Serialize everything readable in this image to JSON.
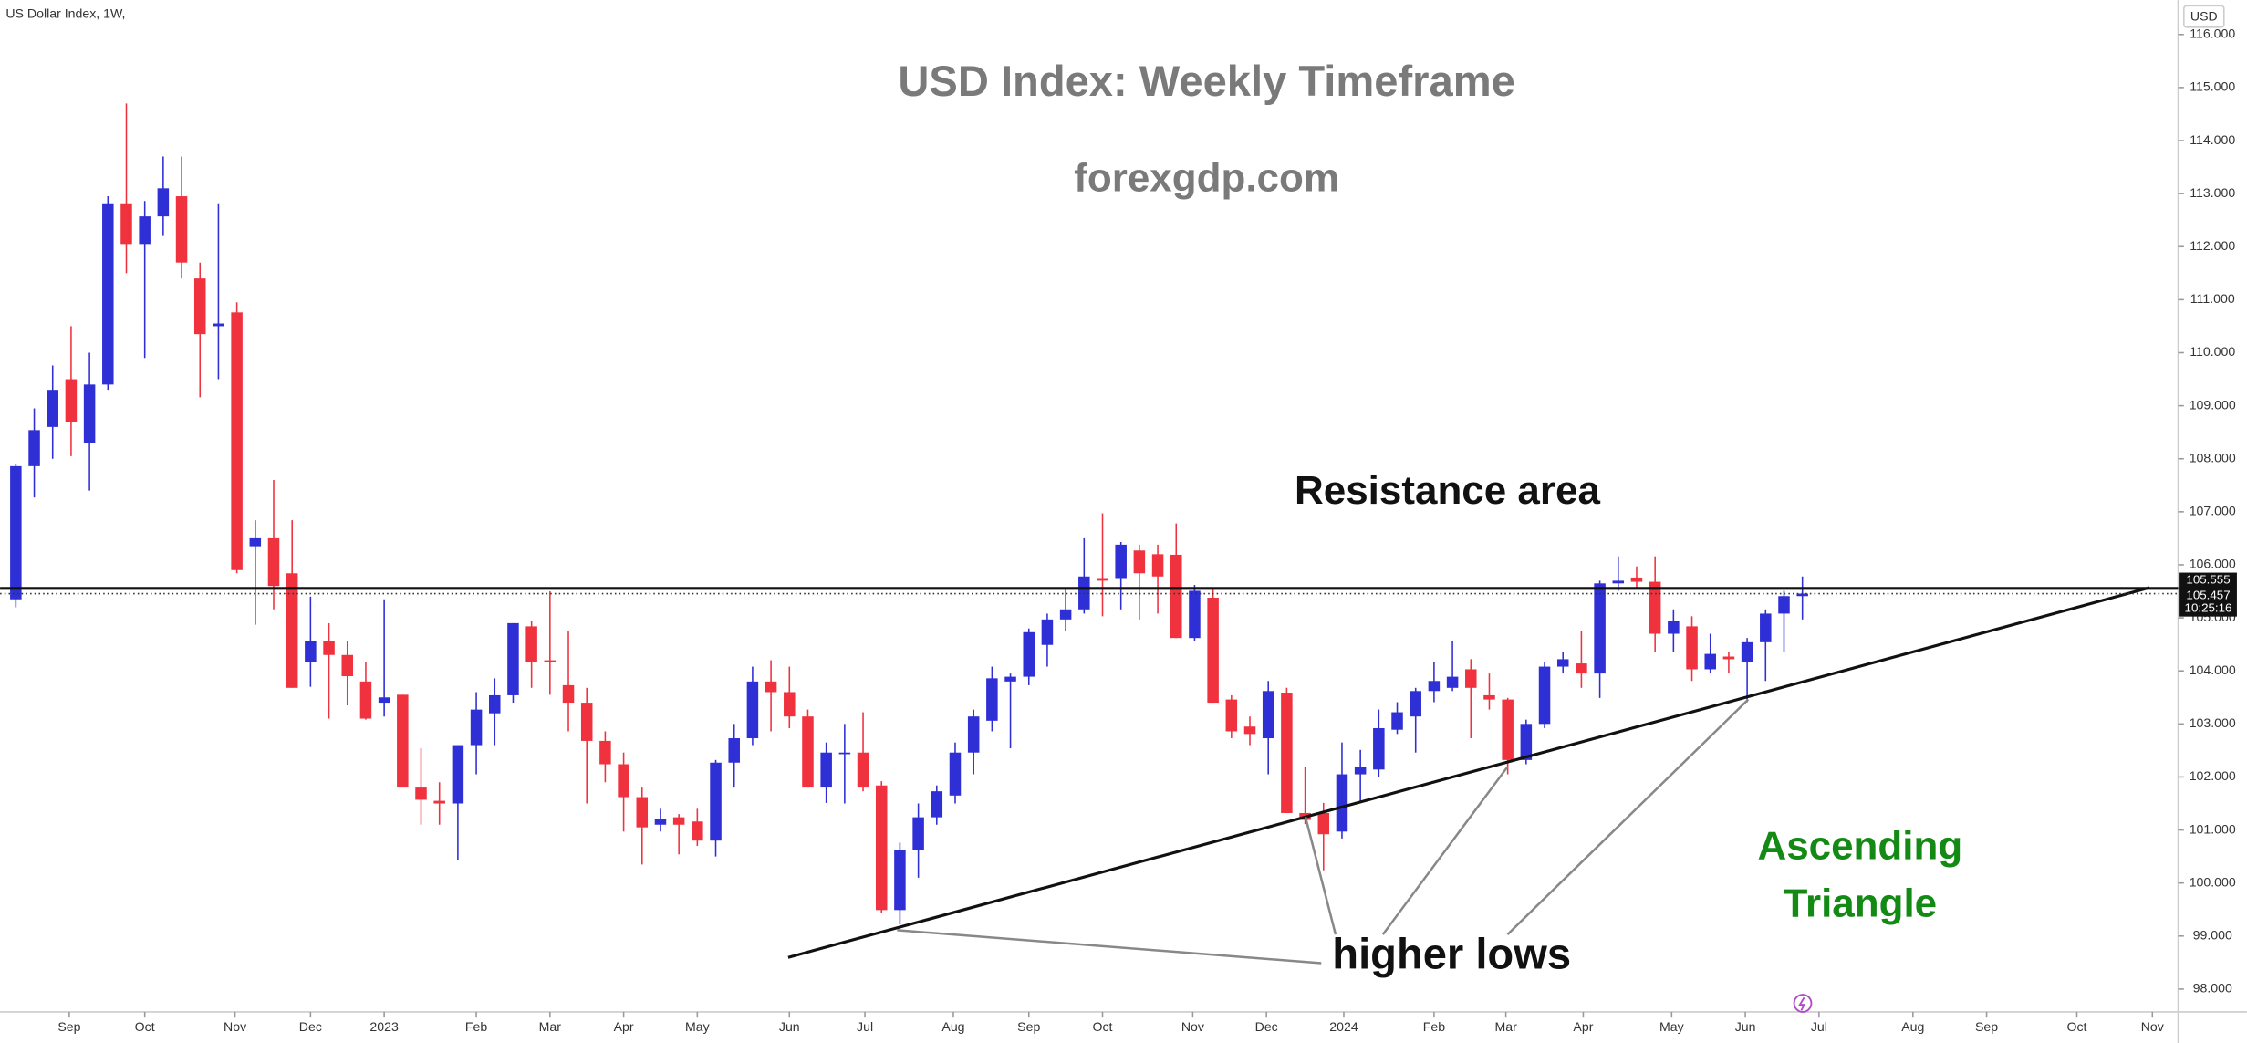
{
  "chart_data": {
    "type": "candlestick",
    "title": "USD Index: Weekly Timeframe",
    "subtitle": "forexgdp.com",
    "symbol_label": "US Dollar Index, 1W,",
    "currency": "USD",
    "annotations": {
      "resistance_area": "Resistance area",
      "higher_lows": "higher lows",
      "pattern": [
        "Ascending",
        "Triangle"
      ]
    },
    "resistance": 105.555,
    "last_price": 105.457,
    "countdown": "10:25:16",
    "up_color": "#2f2fd6",
    "down_color": "#f0323f",
    "x": [
      0,
      1,
      2,
      3,
      4,
      5,
      6,
      7,
      8,
      9,
      10,
      11,
      12,
      13,
      14,
      15,
      16,
      17,
      18,
      19,
      20,
      21,
      22,
      23,
      24,
      25,
      26,
      27,
      28,
      29,
      30,
      31,
      32,
      33,
      34,
      35,
      36,
      37,
      38,
      39,
      40,
      41,
      42,
      43,
      44,
      45,
      46,
      47,
      48,
      49,
      50,
      51,
      52,
      53,
      54,
      55,
      56,
      57,
      58,
      59,
      60,
      61,
      62,
      63,
      64,
      65,
      66,
      67,
      68,
      69,
      70,
      71,
      72,
      73,
      74,
      75,
      76,
      77,
      78,
      79,
      80,
      81,
      82,
      83,
      84,
      85,
      86,
      87,
      88,
      89,
      90,
      91,
      92,
      93,
      94,
      95,
      96,
      97
    ],
    "open": [
      105.35,
      107.86,
      108.6,
      109.5,
      108.3,
      109.4,
      112.8,
      112.05,
      112.57,
      112.95,
      111.4,
      110.5,
      110.76,
      106.35,
      106.5,
      105.84,
      104.16,
      104.57,
      104.3,
      103.8,
      103.4,
      103.55,
      101.8,
      101.55,
      101.5,
      102.6,
      103.2,
      103.54,
      104.84,
      104.2,
      103.73,
      103.4,
      102.68,
      102.24,
      101.62,
      101.1,
      101.24,
      101.16,
      100.8,
      102.27,
      102.73,
      103.8,
      103.6,
      103.14,
      101.8,
      102.43,
      102.46,
      101.84,
      99.49,
      100.62,
      101.24,
      101.65,
      102.46,
      103.06,
      103.8,
      103.89,
      104.49,
      104.97,
      105.16,
      105.75,
      105.75,
      106.27,
      106.2,
      106.19,
      104.62,
      105.38,
      103.46,
      102.95,
      102.73,
      103.59,
      101.32,
      101.32,
      100.97,
      102.05,
      102.14,
      102.89,
      103.14,
      103.62,
      103.68,
      104.03,
      103.54,
      103.46,
      102.32,
      103.0,
      104.08,
      104.14,
      103.95,
      105.65,
      105.76,
      105.68,
      104.7,
      104.84,
      104.03,
      104.27,
      104.16,
      104.54,
      105.08,
      105.41
    ],
    "high": [
      107.9,
      108.95,
      109.76,
      110.5,
      110.0,
      112.95,
      114.7,
      112.86,
      113.7,
      113.7,
      111.7,
      112.8,
      110.95,
      106.84,
      107.6,
      106.84,
      105.4,
      104.9,
      104.57,
      104.16,
      105.35,
      103.55,
      102.54,
      101.9,
      102.6,
      103.6,
      103.86,
      104.9,
      104.95,
      105.5,
      104.75,
      103.68,
      102.86,
      102.46,
      101.8,
      101.4,
      101.3,
      101.4,
      102.32,
      103.0,
      104.08,
      104.2,
      104.08,
      103.27,
      102.65,
      103.0,
      103.22,
      101.92,
      100.76,
      101.5,
      101.84,
      102.65,
      103.27,
      104.08,
      103.95,
      104.8,
      105.08,
      105.57,
      106.5,
      106.97,
      106.43,
      106.38,
      106.38,
      106.78,
      105.62,
      105.57,
      103.54,
      103.14,
      103.81,
      103.68,
      102.19,
      101.51,
      102.65,
      102.51,
      103.27,
      103.41,
      103.68,
      104.16,
      104.57,
      104.22,
      103.95,
      103.49,
      103.08,
      104.16,
      104.35,
      104.76,
      105.7,
      106.16,
      105.97,
      106.16,
      105.16,
      105.03,
      104.7,
      104.35,
      104.62,
      105.16,
      105.51,
      105.78
    ],
    "low": [
      105.2,
      107.27,
      108.0,
      108.05,
      107.4,
      109.3,
      111.5,
      109.9,
      112.2,
      111.4,
      109.16,
      109.5,
      105.84,
      104.87,
      105.16,
      103.68,
      103.7,
      103.1,
      103.35,
      103.08,
      103.14,
      101.8,
      101.1,
      101.1,
      100.43,
      102.05,
      102.6,
      103.4,
      103.68,
      103.55,
      102.86,
      101.5,
      101.9,
      100.97,
      100.35,
      100.97,
      100.54,
      100.7,
      100.5,
      101.8,
      102.6,
      102.86,
      102.92,
      101.8,
      101.51,
      101.5,
      101.73,
      99.43,
      99.22,
      100.1,
      101.1,
      101.5,
      102.05,
      102.86,
      102.54,
      103.73,
      104.08,
      104.76,
      105.08,
      105.03,
      105.16,
      104.97,
      105.08,
      104.62,
      104.57,
      103.4,
      102.73,
      102.6,
      102.05,
      101.32,
      101.11,
      100.24,
      100.84,
      101.51,
      102.0,
      102.81,
      102.46,
      103.41,
      103.62,
      102.73,
      103.27,
      102.05,
      102.24,
      102.92,
      103.95,
      103.68,
      103.49,
      105.51,
      105.57,
      104.35,
      104.35,
      103.81,
      103.95,
      103.95,
      103.41,
      103.81,
      104.35,
      104.97
    ],
    "close": [
      107.86,
      108.54,
      109.3,
      108.7,
      109.4,
      112.8,
      112.05,
      112.57,
      113.1,
      111.7,
      110.35,
      110.55,
      105.9,
      106.5,
      105.6,
      103.68,
      104.57,
      104.3,
      103.9,
      103.1,
      103.5,
      101.8,
      101.57,
      101.5,
      102.6,
      103.27,
      103.54,
      104.9,
      104.16,
      104.18,
      103.4,
      102.68,
      102.24,
      101.62,
      101.05,
      101.2,
      101.1,
      100.8,
      102.27,
      102.73,
      103.8,
      103.6,
      103.14,
      101.8,
      102.46,
      102.46,
      101.8,
      99.49,
      100.62,
      101.24,
      101.73,
      102.46,
      103.14,
      103.86,
      103.89,
      104.73,
      104.97,
      105.16,
      105.78,
      105.7,
      106.38,
      105.84,
      105.78,
      104.62,
      105.51,
      103.4,
      102.86,
      102.81,
      103.62,
      101.32,
      101.19,
      100.92,
      102.05,
      102.19,
      102.92,
      103.22,
      103.62,
      103.81,
      103.89,
      103.68,
      103.46,
      102.32,
      103.0,
      104.08,
      104.22,
      103.95,
      105.65,
      105.7,
      105.68,
      104.7,
      104.95,
      104.03,
      104.32,
      104.22,
      104.54,
      105.08,
      105.41,
      105.457
    ],
    "xlim": [
      -0.856,
      117.4
    ],
    "ylim": [
      97.57,
      116.65
    ],
    "xticks": [
      {
        "value": 2.9,
        "label": "Sep"
      },
      {
        "value": 7.0,
        "label": "Oct"
      },
      {
        "value": 11.9,
        "label": "Nov"
      },
      {
        "value": 16.0,
        "label": "Dec"
      },
      {
        "value": 20.0,
        "label": "2023"
      },
      {
        "value": 25.0,
        "label": "Feb"
      },
      {
        "value": 29.0,
        "label": "Mar"
      },
      {
        "value": 33.0,
        "label": "Apr"
      },
      {
        "value": 37.0,
        "label": "May"
      },
      {
        "value": 42.0,
        "label": "Jun"
      },
      {
        "value": 46.1,
        "label": "Jul"
      },
      {
        "value": 50.9,
        "label": "Aug"
      },
      {
        "value": 55.0,
        "label": "Sep"
      },
      {
        "value": 59.0,
        "label": "Oct"
      },
      {
        "value": 63.9,
        "label": "Nov"
      },
      {
        "value": 67.9,
        "label": "Dec"
      },
      {
        "value": 72.1,
        "label": "2024"
      },
      {
        "value": 77.0,
        "label": "Feb"
      },
      {
        "value": 80.9,
        "label": "Mar"
      },
      {
        "value": 85.1,
        "label": "Apr"
      },
      {
        "value": 89.9,
        "label": "May"
      },
      {
        "value": 93.9,
        "label": "Jun"
      },
      {
        "value": 97.9,
        "label": "Jul"
      },
      {
        "value": 103.0,
        "label": "Aug"
      },
      {
        "value": 107.0,
        "label": "Sep"
      },
      {
        "value": 111.9,
        "label": "Oct"
      },
      {
        "value": 116.0,
        "label": "Nov"
      }
    ],
    "yticks": [
      {
        "value": 98,
        "label": "98.000"
      },
      {
        "value": 99,
        "label": "99.000"
      },
      {
        "value": 100,
        "label": "100.000"
      },
      {
        "value": 101,
        "label": "101.000"
      },
      {
        "value": 102,
        "label": "102.000"
      },
      {
        "value": 103,
        "label": "103.000"
      },
      {
        "value": 104,
        "label": "104.000"
      },
      {
        "value": 105,
        "label": "105.000"
      },
      {
        "value": 106,
        "label": "106.000"
      },
      {
        "value": 107,
        "label": "107.000"
      },
      {
        "value": 108,
        "label": "108.000"
      },
      {
        "value": 109,
        "label": "109.000"
      },
      {
        "value": 110,
        "label": "110.000"
      },
      {
        "value": 111,
        "label": "111.000"
      },
      {
        "value": 112,
        "label": "112.000"
      },
      {
        "value": 113,
        "label": "113.000"
      },
      {
        "value": 114,
        "label": "114.000"
      },
      {
        "value": 115,
        "label": "115.000"
      },
      {
        "value": 116,
        "label": "116.000"
      }
    ]
  }
}
